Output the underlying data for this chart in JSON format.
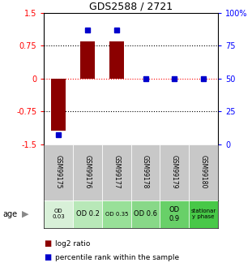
{
  "title": "GDS2588 / 2721",
  "samples": [
    "GSM99175",
    "GSM99176",
    "GSM99177",
    "GSM99178",
    "GSM99179",
    "GSM99180"
  ],
  "log2_ratio": [
    -1.2,
    0.85,
    0.85,
    0.0,
    0.0,
    0.0
  ],
  "percentile_rank_pct": [
    7,
    87,
    87,
    50,
    50,
    50
  ],
  "ylim_left": [
    -1.5,
    1.5
  ],
  "ylim_right": [
    0,
    100
  ],
  "yticks_left": [
    -1.5,
    -0.75,
    0,
    0.75,
    1.5
  ],
  "yticks_right": [
    0,
    25,
    50,
    75,
    100
  ],
  "ytick_labels_left": [
    "-1.5",
    "-0.75",
    "0",
    "0.75",
    "1.5"
  ],
  "ytick_labels_right": [
    "0",
    "25",
    "50",
    "75",
    "100%"
  ],
  "hlines_black": [
    -0.75,
    0.75
  ],
  "hline_red": 0,
  "bar_color": "#8B0000",
  "percentile_color": "#0000CC",
  "bar_width": 0.5,
  "age_labels": [
    "OD\n0.03",
    "OD 0.2",
    "OD 0.35",
    "OD 0.6",
    "OD\n0.9",
    "stationar\ny phase"
  ],
  "age_colors": [
    "#d8f0d8",
    "#b8e8b8",
    "#98e098",
    "#88d888",
    "#68d068",
    "#48c848"
  ],
  "sample_bg": "#c8c8c8",
  "legend_red_label": "log2 ratio",
  "legend_blue_label": "percentile rank within the sample",
  "background_color": "#ffffff"
}
